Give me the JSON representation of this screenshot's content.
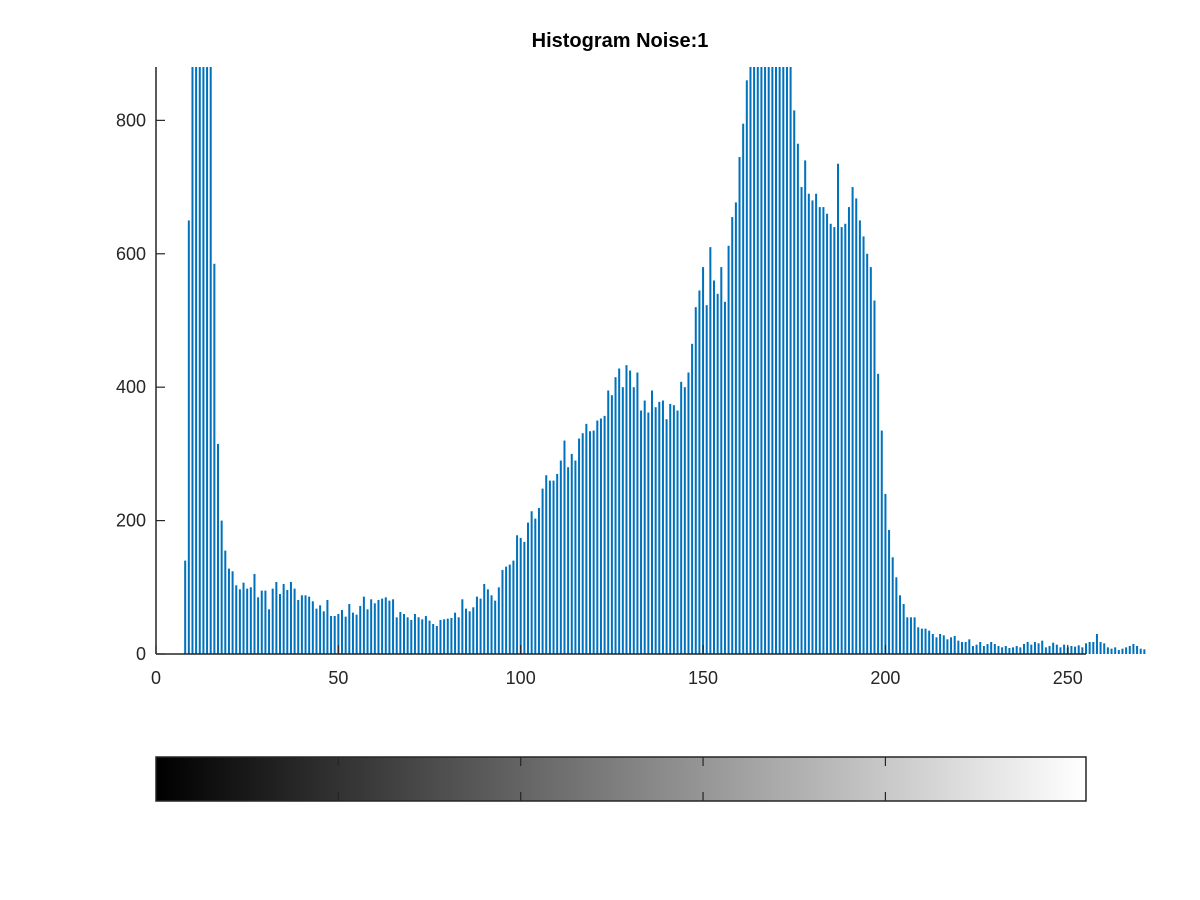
{
  "chart_data": {
    "type": "bar",
    "title": "Histogram Noise:1",
    "xlabel": "",
    "ylabel": "",
    "xlim": [
      0,
      255
    ],
    "ylim": [
      0,
      880
    ],
    "xticks": [
      0,
      50,
      100,
      150,
      200,
      250
    ],
    "yticks": [
      0,
      200,
      400,
      600,
      800
    ],
    "grid": false,
    "legend": "none",
    "bar_color": "#0072BD",
    "x_start": 8,
    "values": [
      140,
      650,
      880,
      880,
      880,
      880,
      880,
      880,
      585,
      315,
      200,
      155,
      128,
      124,
      103,
      97,
      107,
      98,
      100,
      120,
      85,
      95,
      95,
      67,
      98,
      108,
      90,
      105,
      96,
      108,
      98,
      81,
      88,
      88,
      86,
      79,
      68,
      73,
      64,
      81,
      57,
      57,
      60,
      66,
      56,
      75,
      62,
      59,
      72,
      86,
      67,
      82,
      76,
      81,
      83,
      85,
      80,
      82,
      55,
      63,
      60,
      55,
      51,
      60,
      55,
      52,
      57,
      50,
      45,
      42,
      51,
      52,
      53,
      54,
      62,
      55,
      82,
      68,
      64,
      70,
      86,
      83,
      105,
      97,
      88,
      80,
      100,
      126,
      131,
      134,
      140,
      178,
      174,
      168,
      197,
      214,
      203,
      219,
      248,
      268,
      260,
      260,
      270,
      290,
      320,
      280,
      300,
      290,
      323,
      331,
      345,
      334,
      335,
      350,
      353,
      357,
      395,
      388,
      415,
      428,
      400,
      433,
      425,
      400,
      422,
      365,
      380,
      362,
      395,
      370,
      378,
      380,
      352,
      375,
      373,
      365,
      408,
      400,
      422,
      465,
      520,
      545,
      580,
      523,
      610,
      560,
      540,
      580,
      528,
      612,
      655,
      677,
      745,
      795,
      860,
      880,
      880,
      880,
      880,
      880,
      880,
      880,
      880,
      880,
      880,
      880,
      880,
      815,
      765,
      700,
      740,
      690,
      680,
      690,
      670,
      670,
      660,
      645,
      640,
      735,
      640,
      645,
      670,
      700,
      683,
      650,
      626,
      600,
      580,
      530,
      420,
      335,
      240,
      186,
      145,
      115,
      88,
      75,
      55,
      55,
      55,
      40,
      38,
      38,
      35,
      30,
      25,
      30,
      28,
      22,
      25,
      27,
      20,
      18,
      18,
      22,
      12,
      14,
      18,
      12,
      15,
      18,
      15,
      12,
      10,
      12,
      9,
      10,
      12,
      10,
      15,
      18,
      14,
      18,
      16,
      20,
      10,
      12,
      17,
      14,
      10,
      14,
      10,
      12,
      11,
      13,
      10,
      16,
      18,
      18,
      30,
      18,
      16,
      10,
      8,
      10,
      6,
      8,
      10,
      12,
      15,
      12,
      8,
      7
    ]
  },
  "colorbar": {
    "colormap": "gray",
    "range": [
      0,
      255
    ],
    "ticks": [
      50,
      100,
      150,
      200
    ]
  }
}
